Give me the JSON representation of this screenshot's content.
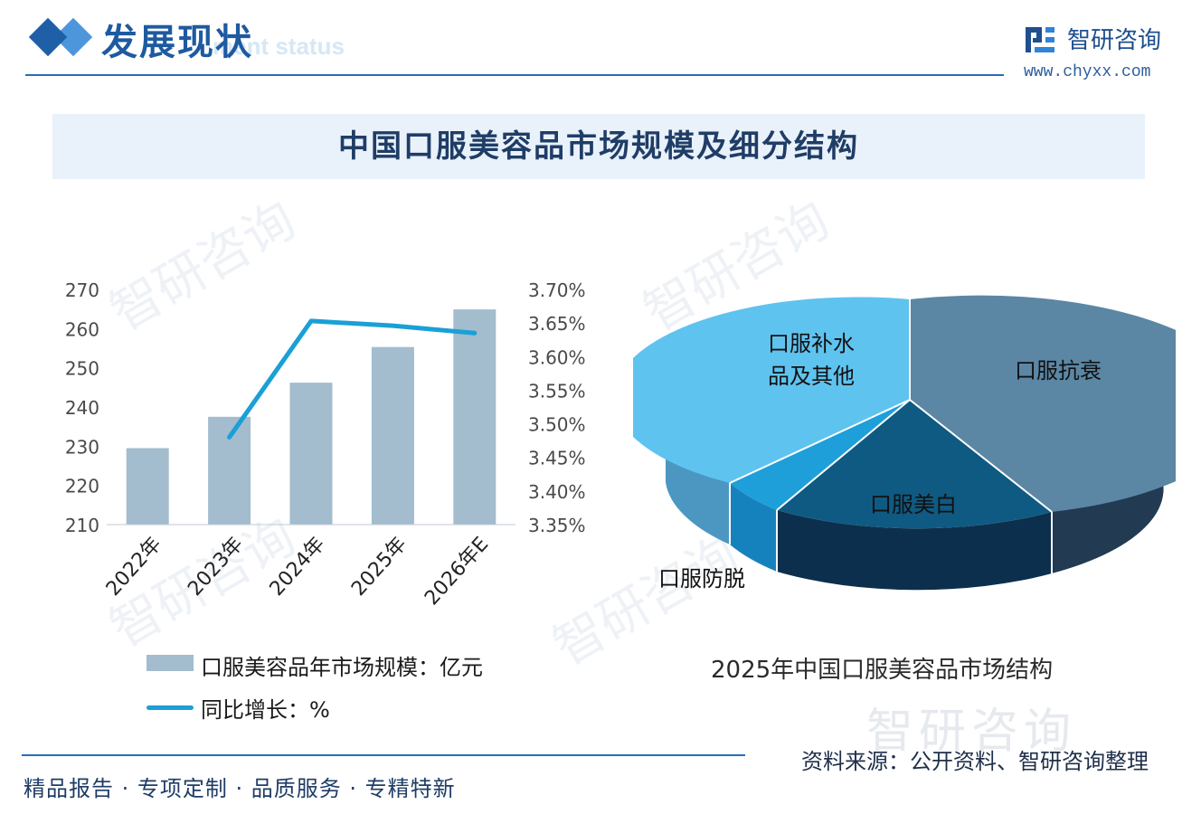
{
  "header": {
    "section_title": "发展现状",
    "section_subtitle": "ment status",
    "logo_name": "智研咨询",
    "logo_url": "www.chyxx.com"
  },
  "title": "中国口服美容品市场规模及细分结构",
  "colors": {
    "primary": "#1e5aa0",
    "bar": "#a3bcce",
    "line": "#1aa0d6",
    "pie_antiaging": "#5b87a5",
    "pie_whitening": "#0f5a82",
    "pie_hairloss": "#1e9fd9",
    "pie_hydration": "#5fc3ef"
  },
  "chart_data": [
    {
      "type": "bar",
      "categories": [
        "2022年",
        "2023年",
        "2024年",
        "2025年",
        "2026年E"
      ],
      "series": [
        {
          "name": "口服美容品年市场规模：亿元",
          "type": "bar",
          "axis": "left",
          "values": [
            229.5,
            237.5,
            246.2,
            255.3,
            264.9
          ]
        },
        {
          "name": "同比增长：%",
          "type": "line",
          "axis": "right",
          "values": [
            null,
            3.48,
            3.653,
            3.646,
            3.635
          ]
        }
      ],
      "y_left": {
        "min": 210,
        "max": 270,
        "ticks": [
          "270",
          "260",
          "250",
          "240",
          "230",
          "220",
          "210"
        ]
      },
      "y_right": {
        "min": 3.35,
        "max": 3.7,
        "ticks": [
          "3.70%",
          "3.65%",
          "3.60%",
          "3.55%",
          "3.50%",
          "3.45%",
          "3.40%",
          "3.35%"
        ]
      },
      "legend": [
        {
          "label": "口服美容品年市场规模：亿元"
        },
        {
          "label": "同比增长：%"
        }
      ],
      "grid": false,
      "legend_placement": "bottom"
    },
    {
      "type": "pie",
      "title": "2025年中国口服美容品市场结构",
      "slices": [
        {
          "label": "口服抗衰",
          "value": 41
        },
        {
          "label": "口服美白",
          "value": 23
        },
        {
          "label": "口服防脱",
          "value": 5
        },
        {
          "label": "口服补水品及其他",
          "value": 31
        }
      ],
      "style": "3d"
    }
  ],
  "pie_labels": {
    "antiaging": "口服抗衰",
    "whitening": "口服美白",
    "hairloss": "口服防脱",
    "hydration_line1": "口服补水",
    "hydration_line2": "品及其他"
  },
  "watermark": "智研咨询",
  "source": "资料来源：公开资料、智研咨询整理",
  "footer": "精品报告 · 专项定制 · 品质服务 · 专精特新"
}
